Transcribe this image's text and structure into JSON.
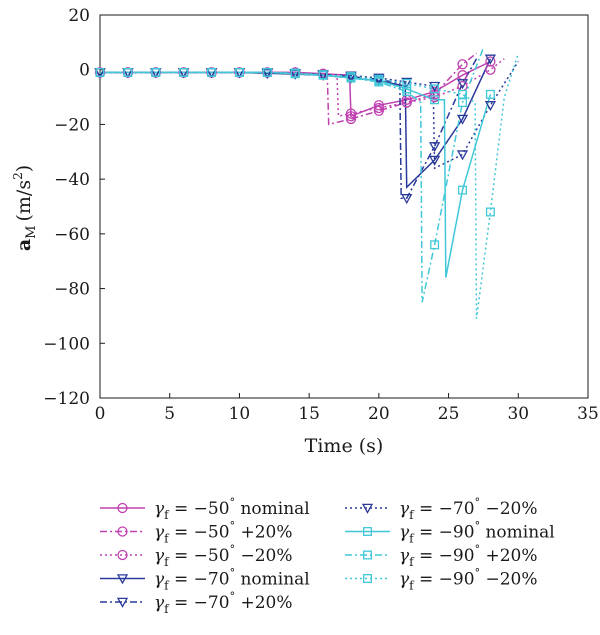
{
  "chart_data": {
    "type": "line",
    "xlabel": "Time (s)",
    "ylabel": {
      "base": "a",
      "sub": "M",
      "unit": "(m/s",
      "sup": "2",
      "close": ")"
    },
    "xlim": [
      0,
      35
    ],
    "ylim": [
      -120,
      20
    ],
    "xticks": [
      0,
      5,
      10,
      15,
      20,
      25,
      30,
      35
    ],
    "yticks": [
      20,
      0,
      -20,
      -40,
      -60,
      -80,
      -100,
      -120
    ],
    "grid": false,
    "legend_position": "bottom",
    "colors": {
      "magenta": "#c040b0",
      "blue": "#2a3a9a",
      "cyan": "#40c8d8"
    },
    "series": [
      {
        "name": "γf = −50° nominal",
        "gamma": "γ",
        "sub": "f",
        "text": " = −50",
        "sup": "°",
        "suffix": " nominal",
        "color": "#c040b0",
        "dash": "solid",
        "marker": "circle",
        "x": [
          0,
          2,
          4,
          6,
          8,
          10,
          12,
          14,
          16,
          17.9,
          18,
          20,
          22,
          24,
          26,
          28
        ],
        "y": [
          -1,
          -1,
          -1,
          -1,
          -1,
          -1,
          -1,
          -1,
          -1.5,
          -2,
          -17,
          -13,
          -11,
          -8,
          -2,
          3
        ],
        "markers_x": [
          0,
          2,
          4,
          6,
          8,
          10,
          12,
          14,
          16,
          18,
          20,
          22,
          24,
          26,
          28
        ],
        "markers_y": [
          -1,
          -1,
          -1,
          -1,
          -1,
          -1,
          -1,
          -1,
          -1.5,
          -17,
          -13,
          -11,
          -8,
          -2,
          3
        ]
      },
      {
        "name": "γf = −50° +20%",
        "gamma": "γ",
        "sub": "f",
        "text": " = −50",
        "sup": "°",
        "suffix": " +20%",
        "color": "#c040b0",
        "dash": "dashdot",
        "marker": "circle",
        "x": [
          0,
          2,
          4,
          6,
          8,
          10,
          12,
          14,
          16.3,
          16.4,
          18,
          20,
          22,
          24,
          26,
          27
        ],
        "y": [
          -1,
          -1,
          -1,
          -1,
          -1,
          -1,
          -1,
          -1.2,
          -2,
          -20,
          -18,
          -15,
          -12,
          -9,
          2,
          6
        ],
        "markers_x": [
          0,
          2,
          4,
          6,
          8,
          10,
          12,
          14,
          18,
          20,
          22,
          24,
          26
        ],
        "markers_y": [
          -1,
          -1,
          -1,
          -1,
          -1,
          -1,
          -1,
          -1.2,
          -18,
          -15,
          -12,
          -9,
          2
        ]
      },
      {
        "name": "γf = −50° −20%",
        "gamma": "γ",
        "sub": "f",
        "text": " = −50",
        "sup": "°",
        "suffix": " −20%",
        "color": "#c040b0",
        "dash": "dotted",
        "marker": "circle",
        "x": [
          0,
          2,
          4,
          6,
          8,
          10,
          12,
          14,
          16,
          17,
          17.1,
          18,
          20,
          22,
          24,
          26,
          28,
          29
        ],
        "y": [
          -1,
          -1,
          -1,
          -1,
          -1,
          -1,
          -1,
          -1,
          -1.5,
          -2,
          -17,
          -16,
          -14,
          -12,
          -10,
          -6,
          0,
          4
        ],
        "markers_x": [
          0,
          2,
          4,
          6,
          8,
          10,
          12,
          14,
          16,
          18,
          20,
          22,
          24,
          26,
          28
        ],
        "markers_y": [
          -1,
          -1,
          -1,
          -1,
          -1,
          -1,
          -1,
          -1,
          -1.5,
          -16,
          -14,
          -12,
          -10,
          -6,
          0
        ]
      },
      {
        "name": "γf = −70° nominal",
        "gamma": "γ",
        "sub": "f",
        "text": " = −70",
        "sup": "°",
        "suffix": " nominal",
        "color": "#2a3a9a",
        "dash": "solid",
        "marker": "triangle",
        "x": [
          0,
          2,
          4,
          6,
          8,
          10,
          12,
          14,
          16,
          18,
          20,
          21.9,
          22,
          24,
          26,
          28
        ],
        "y": [
          -1,
          -1,
          -1,
          -1,
          -1,
          -1,
          -1.3,
          -1.6,
          -2,
          -3,
          -4,
          -6,
          -43,
          -33,
          -18,
          4
        ],
        "markers_x": [
          0,
          2,
          4,
          6,
          8,
          10,
          12,
          14,
          16,
          18,
          20,
          24,
          26,
          28
        ],
        "markers_y": [
          -1,
          -1,
          -1,
          -1,
          -1,
          -1,
          -1.3,
          -1.6,
          -2,
          -3,
          -4,
          -33,
          -18,
          4
        ]
      },
      {
        "name": "γf = −70° +20%",
        "gamma": "γ",
        "sub": "f",
        "text": " = −70",
        "sup": "°",
        "suffix": " +20%",
        "color": "#2a3a9a",
        "dash": "dashdot",
        "marker": "triangle",
        "x": [
          0,
          2,
          4,
          6,
          8,
          10,
          12,
          14,
          16,
          18,
          20,
          21.5,
          21.6,
          22,
          24,
          26,
          27
        ],
        "y": [
          -1,
          -1,
          -1,
          -1,
          -1,
          -1,
          -1,
          -1.4,
          -1.8,
          -2.5,
          -3.5,
          -5,
          -47,
          -47,
          -28,
          -5,
          4
        ],
        "markers_x": [
          0,
          2,
          4,
          6,
          8,
          10,
          12,
          14,
          16,
          18,
          20,
          22,
          24,
          26
        ],
        "markers_y": [
          -1,
          -1,
          -1,
          -1,
          -1,
          -1,
          -1,
          -1.4,
          -1.8,
          -2.5,
          -3.5,
          -47,
          -28,
          -5
        ]
      },
      {
        "name": "γf = −70° −20%",
        "gamma": "γ",
        "sub": "f",
        "text": " = −70",
        "sup": "°",
        "suffix": " −20%",
        "color": "#2a3a9a",
        "dash": "dotted",
        "marker": "triangle",
        "x": [
          0,
          2,
          4,
          6,
          8,
          10,
          12,
          14,
          16,
          18,
          20,
          22,
          23.9,
          24,
          26,
          28,
          30
        ],
        "y": [
          -1,
          -1,
          -1,
          -1,
          -1,
          -1,
          -1,
          -1.3,
          -1.7,
          -2.2,
          -3,
          -4.5,
          -6,
          -36,
          -31,
          -13,
          3
        ],
        "markers_x": [
          0,
          2,
          4,
          6,
          8,
          10,
          12,
          14,
          16,
          18,
          20,
          22,
          24,
          26,
          28
        ],
        "markers_y": [
          -1,
          -1,
          -1,
          -1,
          -1,
          -1,
          -1,
          -1.3,
          -1.7,
          -2.2,
          -3,
          -4.5,
          -6,
          -31,
          -13
        ]
      },
      {
        "name": "γf = −90° nominal",
        "gamma": "γ",
        "sub": "f",
        "text": " = −90",
        "sup": "°",
        "suffix": " nominal",
        "color": "#40c8d8",
        "dash": "solid",
        "marker": "square",
        "x": [
          0,
          2,
          4,
          6,
          8,
          10,
          12,
          14,
          16,
          18,
          20,
          22,
          24,
          24.7,
          24.8,
          26,
          28
        ],
        "y": [
          -1,
          -1,
          -1,
          -1,
          -1,
          -1,
          -1,
          -1.5,
          -2,
          -3,
          -4,
          -7,
          -11,
          -11,
          -76,
          -44,
          -9
        ],
        "markers_x": [
          0,
          2,
          4,
          6,
          8,
          10,
          12,
          14,
          16,
          18,
          20,
          22,
          24,
          26,
          28
        ],
        "markers_y": [
          -1,
          -1,
          -1,
          -1,
          -1,
          -1,
          -1,
          -1.5,
          -2,
          -3,
          -4,
          -7,
          -11,
          -44,
          -9
        ]
      },
      {
        "name": "γf = −90° +20%",
        "gamma": "γ",
        "sub": "f",
        "text": " = −90",
        "sup": "°",
        "suffix": " +20%",
        "color": "#40c8d8",
        "dash": "dashdot",
        "marker": "square",
        "x": [
          0,
          2,
          4,
          6,
          8,
          10,
          12,
          14,
          16,
          18,
          20,
          22,
          23,
          23.1,
          24,
          26,
          27.5
        ],
        "y": [
          -1,
          -1,
          -1,
          -1,
          -1,
          -1,
          -1,
          -1.4,
          -2,
          -3,
          -4.5,
          -8,
          -12,
          -85,
          -64,
          -12,
          8
        ],
        "markers_x": [
          0,
          2,
          4,
          6,
          8,
          10,
          12,
          14,
          16,
          18,
          20,
          22,
          24,
          26
        ],
        "markers_y": [
          -1,
          -1,
          -1,
          -1,
          -1,
          -1,
          -1,
          -1.4,
          -2,
          -3,
          -4.5,
          -8,
          -64,
          -12
        ]
      },
      {
        "name": "γf = −90° −20%",
        "gamma": "γ",
        "sub": "f",
        "text": " = −90",
        "sup": "°",
        "suffix": " −20%",
        "color": "#40c8d8",
        "dash": "dotted",
        "marker": "square",
        "x": [
          0,
          2,
          4,
          6,
          8,
          10,
          12,
          14,
          16,
          18,
          20,
          22,
          24,
          26,
          26.9,
          27,
          28,
          29,
          30
        ],
        "y": [
          -1,
          -1,
          -1,
          -1,
          -1,
          -1,
          -1,
          -1.2,
          -1.8,
          -2.5,
          -3.5,
          -5,
          -7,
          -9,
          -12,
          -91,
          -52,
          -10,
          6
        ],
        "markers_x": [
          0,
          2,
          4,
          6,
          8,
          10,
          12,
          14,
          16,
          18,
          20,
          22,
          24,
          26,
          28
        ],
        "markers_y": [
          -1,
          -1,
          -1,
          -1,
          -1,
          -1,
          -1,
          -1.2,
          -1.8,
          -2.5,
          -3.5,
          -5,
          -7,
          -9,
          -52
        ]
      }
    ]
  }
}
